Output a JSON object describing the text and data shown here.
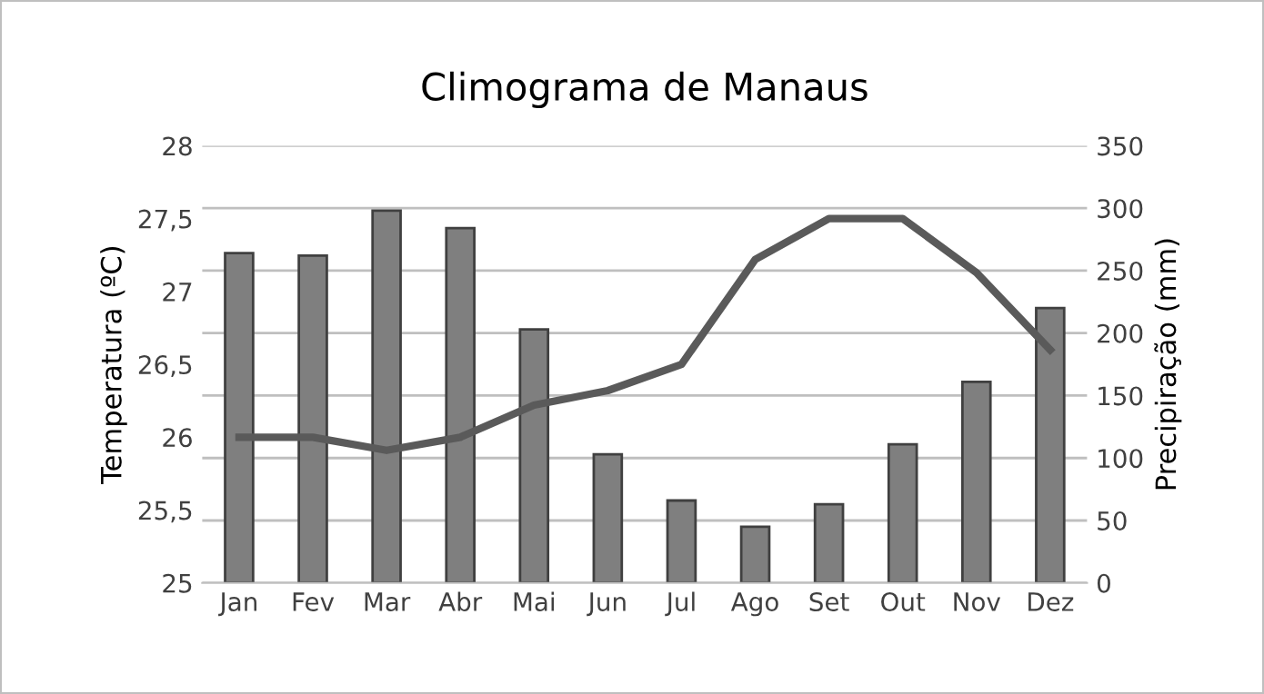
{
  "chart_data": {
    "type": "bar",
    "title": "Climograma de Manaus",
    "ylabel": "Temperatura (ºC)",
    "y2label": "Precipiração (mm)",
    "categories": [
      "Jan",
      "Fev",
      "Mar",
      "Abr",
      "Mai",
      "Jun",
      "Jul",
      "Ago",
      "Set",
      "Out",
      "Nov",
      "Dez"
    ],
    "series": [
      {
        "axis": "y2",
        "color": "#7f7f7f",
        "values": [
          264,
          262,
          298,
          284,
          203,
          103,
          66,
          45,
          63,
          111,
          161,
          220
        ]
      },
      {
        "type": "line",
        "axis": "y",
        "color": "#5a5a5a",
        "values": [
          26.0,
          26.0,
          25.91,
          26.0,
          26.22,
          26.32,
          26.5,
          27.22,
          27.5,
          27.5,
          27.13,
          26.6
        ]
      }
    ],
    "ylim": [
      25,
      28
    ],
    "yticks": [
      25,
      {
        "value": 25.5,
        "label": "25,5"
      },
      26,
      {
        "value": 26.5,
        "label": "26,5"
      },
      27,
      {
        "value": 27.5,
        "label": "27,5"
      },
      28
    ],
    "y2lim": [
      0,
      350
    ],
    "y2ticks": [
      0,
      50,
      100,
      150,
      200,
      250,
      300,
      350
    ],
    "grid": "y",
    "legend": false,
    "marker": "none",
    "line_style": "solid"
  }
}
